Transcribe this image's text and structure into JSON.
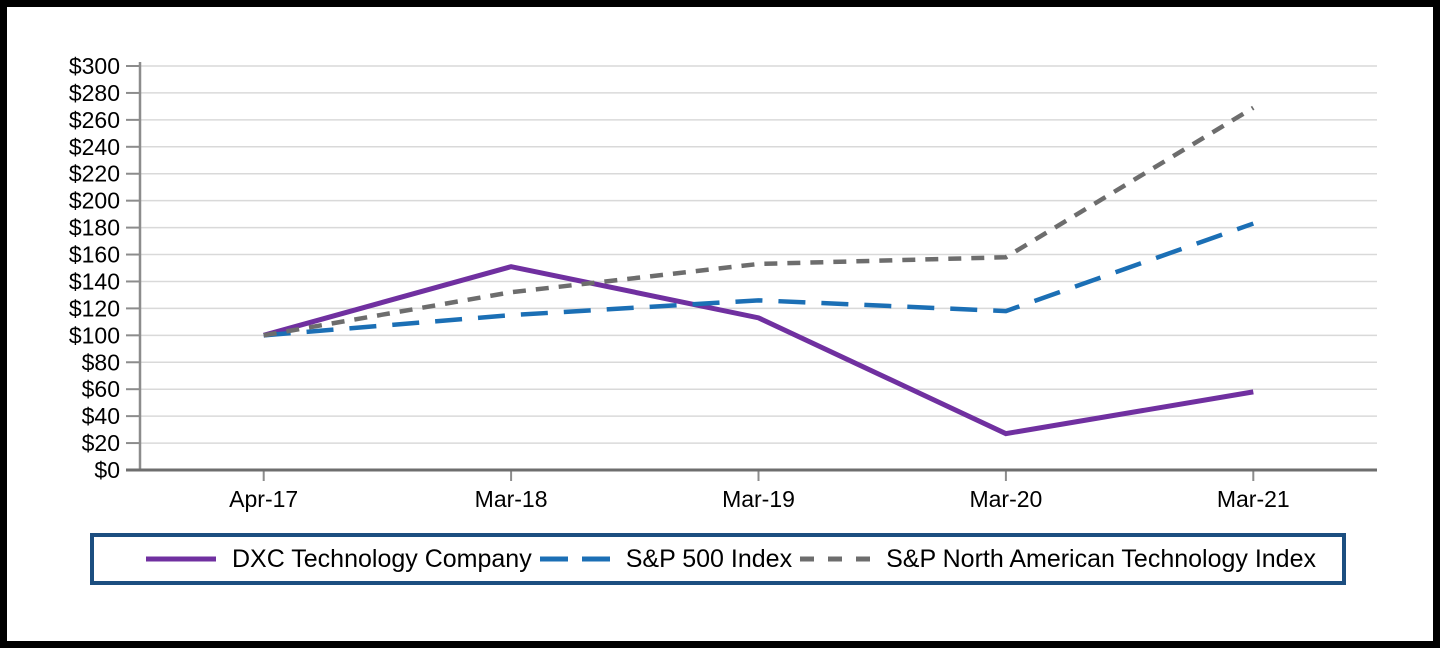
{
  "chart_data": {
    "type": "line",
    "categories": [
      "Apr-17",
      "Mar-18",
      "Mar-19",
      "Mar-20",
      "Mar-21"
    ],
    "series": [
      {
        "name": "DXC Technology Company",
        "values": [
          100,
          151,
          113,
          27,
          58
        ],
        "color": "#7030A0",
        "dash": "solid",
        "width": 5
      },
      {
        "name": "S&P 500 Index",
        "values": [
          100,
          115,
          126,
          118,
          183
        ],
        "color": "#1B6FB5",
        "dash": "long-dash",
        "width": 4.5
      },
      {
        "name": "S&P North American Technology Index",
        "values": [
          100,
          132,
          153,
          158,
          269
        ],
        "color": "#6D6D6D",
        "dash": "short-dash",
        "width": 4.5
      }
    ],
    "ylim": [
      0,
      300
    ],
    "ytick_step": 20,
    "ytick_labels": [
      "$0",
      "$20",
      "$40",
      "$60",
      "$80",
      "$100",
      "$120",
      "$140",
      "$160",
      "$180",
      "$200",
      "$220",
      "$240",
      "$260",
      "$280",
      "$300"
    ],
    "grid": true,
    "legend_position": "bottom"
  },
  "colors": {
    "gridline": "#D9D9D9",
    "axis": "#8C8C8C",
    "axis_bottom": "#6E6E6E",
    "legend_border": "#1C4E80",
    "frame": "#000000",
    "text": "#000000"
  }
}
